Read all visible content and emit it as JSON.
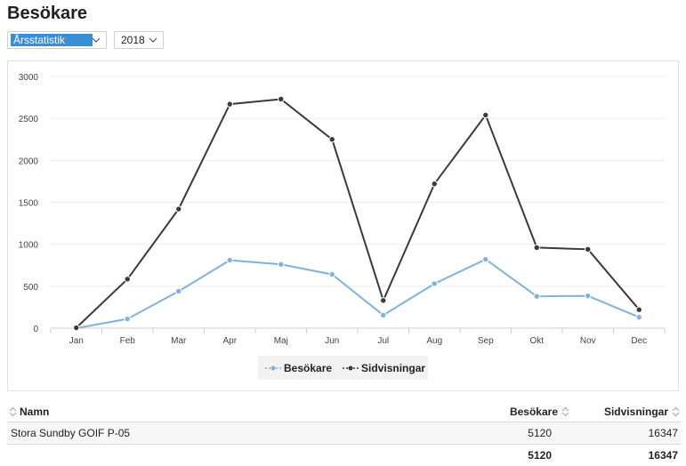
{
  "page": {
    "title": "Besökare"
  },
  "filters": {
    "period": {
      "value": "Årsstatistik",
      "icon": "chevron-down-icon"
    },
    "year": {
      "value": "2018",
      "icon": "chevron-down-icon"
    }
  },
  "chart_data": {
    "type": "line",
    "categories": [
      "Jan",
      "Feb",
      "Mar",
      "Apr",
      "Maj",
      "Jun",
      "Jul",
      "Aug",
      "Sep",
      "Okt",
      "Nov",
      "Dec"
    ],
    "ylim": [
      0,
      3000
    ],
    "yticks": [
      0,
      500,
      1000,
      1500,
      2000,
      2500,
      3000
    ],
    "grid": true,
    "legend_position": "bottom",
    "series": [
      {
        "name": "Besökare",
        "color": "#7fb2dc",
        "values": [
          0,
          110,
          440,
          810,
          760,
          640,
          155,
          530,
          820,
          380,
          385,
          130
        ]
      },
      {
        "name": "Sidvisningar",
        "color": "#3a3a3a",
        "values": [
          5,
          585,
          1420,
          2670,
          2730,
          2250,
          330,
          1720,
          2540,
          960,
          940,
          220
        ]
      }
    ]
  },
  "table": {
    "columns": [
      "Namn",
      "Besökare",
      "Sidvisningar"
    ],
    "rows": [
      {
        "name": "Stora Sundby GOIF P-05",
        "visitors": "5120",
        "pageviews": "16347"
      }
    ],
    "totals": {
      "visitors": "5120",
      "pageviews": "16347"
    }
  }
}
